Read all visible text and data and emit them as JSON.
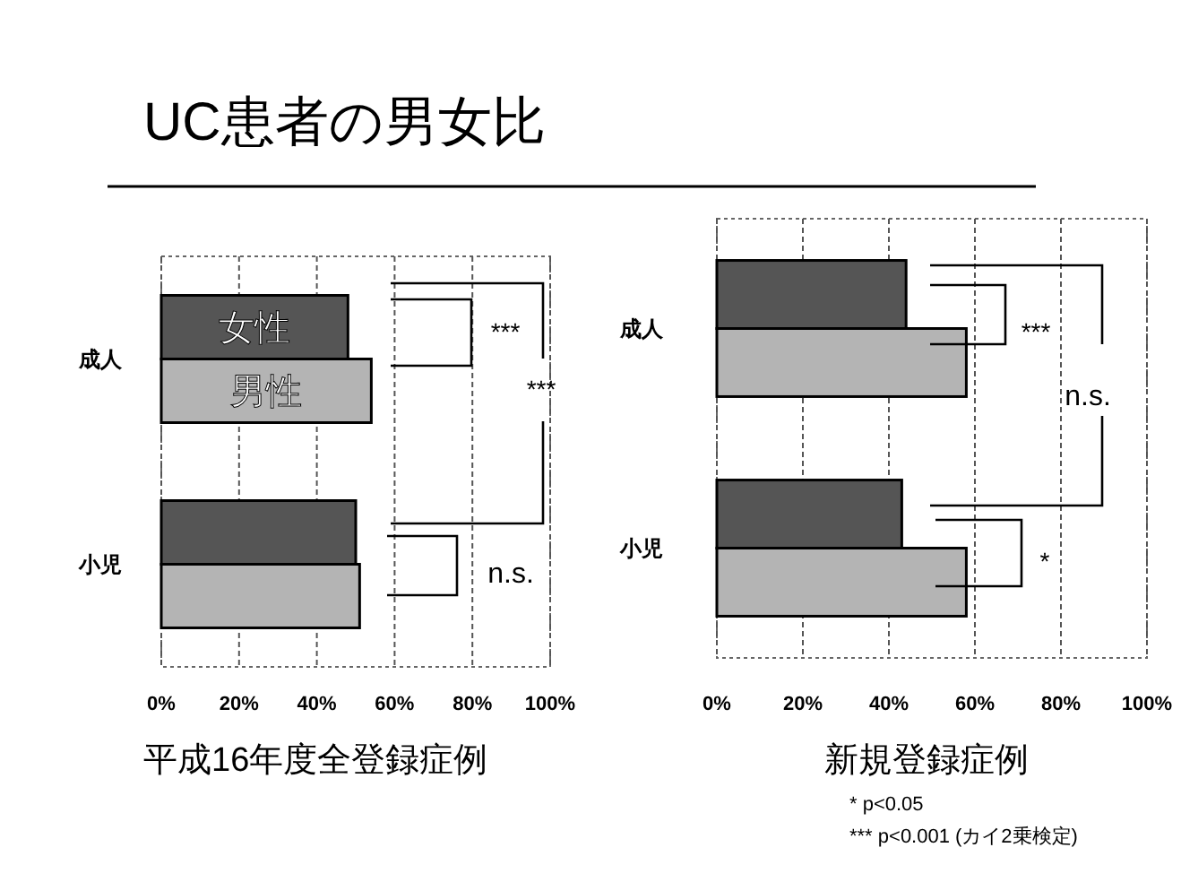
{
  "chart_data": [
    {
      "type": "bar",
      "orientation": "horizontal",
      "title": "UC患者の男女比",
      "xlabel": "平成16年度全登録症例",
      "categories": [
        "成人",
        "小児"
      ],
      "series": [
        {
          "name": "女性",
          "color": "#555555",
          "values": [
            48,
            50
          ]
        },
        {
          "name": "男性",
          "color": "#b4b4b4",
          "values": [
            54,
            51
          ]
        }
      ],
      "xlim": [
        0,
        100
      ],
      "xticks": [
        {
          "value": 0,
          "label": "0%"
        },
        {
          "value": 20,
          "label": "20%"
        },
        {
          "value": 40,
          "label": "40%"
        },
        {
          "value": 60,
          "label": "60%"
        },
        {
          "value": 80,
          "label": "80%"
        },
        {
          "value": 100,
          "label": "100%"
        }
      ],
      "grid": "x",
      "legend": false,
      "annotations": [
        "***",
        "***",
        "n.s."
      ]
    },
    {
      "type": "bar",
      "orientation": "horizontal",
      "xlabel": "新規登録症例",
      "categories": [
        "成人",
        "小児"
      ],
      "series": [
        {
          "color": "#555555",
          "values": [
            44,
            43
          ]
        },
        {
          "color": "#b4b4b4",
          "values": [
            58,
            58
          ]
        }
      ],
      "xlim": [
        0,
        100
      ],
      "xticks": [
        {
          "value": 0,
          "label": "0%"
        },
        {
          "value": 20,
          "label": "20%"
        },
        {
          "value": 40,
          "label": "40%"
        },
        {
          "value": 60,
          "label": "60%"
        },
        {
          "value": 80,
          "label": "80%"
        },
        {
          "value": 100,
          "label": "100%"
        }
      ],
      "grid": "x",
      "legend": false,
      "annotations": [
        "***",
        "n.s.",
        "*",
        "*    p<0.05",
        "*** p<0.001 (カイ2乗検定)"
      ]
    }
  ]
}
